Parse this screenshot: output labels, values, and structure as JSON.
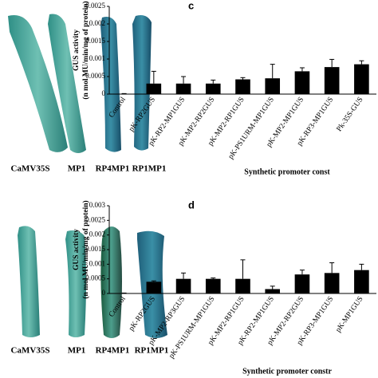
{
  "panels": {
    "top_labels": [
      "CaMV35S",
      "MP1",
      "RP4MP1",
      "RP1MP1"
    ],
    "bottom_labels": [
      "CaMV35S",
      "MP1",
      "RP4MP1",
      "RP1MP1"
    ],
    "chart_letters": [
      "c",
      "d"
    ]
  },
  "chart_data": [
    {
      "type": "bar",
      "y_title": [
        "GUS activity",
        "(n mol MU/min/mg of protein)"
      ],
      "x_title": "Synthetic promoter const",
      "categories": [
        "Control",
        "pK-RP2GUS",
        "pK-RP2-MP1GUS",
        "pK-MP2-RP2GUS",
        "pK-MP2-RP1GUS",
        "pK-PS1URM-MP1GUS",
        "pK-MP2-MP1GUS",
        "pK-RP3-MP1GUS",
        "Pk-35S-GUS"
      ],
      "values": [
        1e-05,
        0.0003,
        0.0003,
        0.0003,
        0.00042,
        0.00045,
        0.00065,
        0.00077,
        0.00085
      ],
      "errors": [
        5e-06,
        0.00035,
        0.0002,
        0.0001,
        5e-05,
        0.0004,
        0.0001,
        0.00022,
        0.0001
      ],
      "color": "#000000",
      "ylim": [
        0,
        0.0025
      ],
      "yticks": [
        0,
        0.0005,
        0.001,
        0.0015,
        0.002,
        0.0025
      ]
    },
    {
      "type": "bar",
      "y_title": [
        "GUS activity",
        "(n mol MU/min/mg of protein)"
      ],
      "x_title": "Synthetic promoter constr",
      "categories": [
        "Control",
        "pK-RP2GUS",
        "pK-MP2-RP3GUS",
        "pK-PS1URM-MP1GUS",
        "pK-MP2-RP1GUS",
        "pK-RP2-MP1GUS",
        "pK-MP2-RP2GUS",
        "pK-RP3-MP1GUS",
        "pK-MP1GUS"
      ],
      "values": [
        1e-05,
        0.0004,
        0.0005,
        0.0005,
        0.0005,
        0.00015,
        0.00065,
        0.0007,
        0.0008
      ],
      "errors": [
        5e-06,
        3e-05,
        0.0002,
        3e-05,
        0.00065,
        0.0001,
        0.00015,
        0.00035,
        0.0002
      ],
      "color": "#000000",
      "ylim": [
        0,
        0.003
      ],
      "yticks": [
        0,
        0.0005,
        0.001,
        0.0015,
        0.002,
        0.0025,
        0.003
      ]
    }
  ]
}
